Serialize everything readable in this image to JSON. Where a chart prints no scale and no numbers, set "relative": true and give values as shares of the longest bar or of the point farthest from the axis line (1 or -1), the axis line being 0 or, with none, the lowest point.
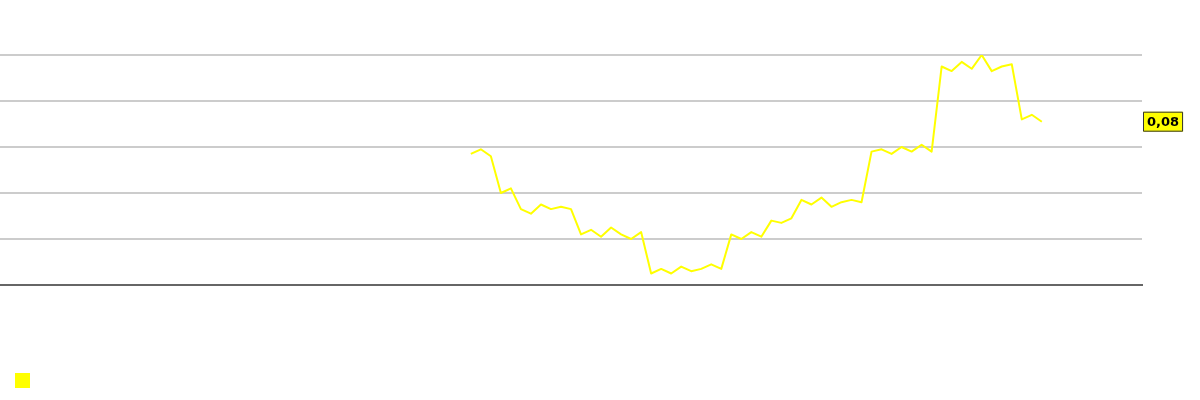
{
  "chart_data": {
    "type": "line",
    "relative": true,
    "grid": "y",
    "marker": "none",
    "categories": [
      null,
      null,
      null,
      null,
      null,
      null,
      null,
      null,
      null,
      null,
      null,
      null,
      null,
      null,
      null,
      null,
      null,
      null,
      null,
      null,
      null,
      null,
      null,
      null,
      null,
      null,
      null,
      null,
      null,
      null,
      null,
      null,
      null,
      null,
      null,
      null,
      null,
      null,
      null,
      null,
      null,
      null,
      null,
      null,
      null,
      null,
      null,
      null,
      null,
      null,
      null,
      null,
      null,
      null,
      null,
      null,
      null,
      null,
      null,
      null,
      null,
      null,
      null,
      null,
      null,
      null,
      null,
      null,
      null,
      null,
      null,
      null,
      null,
      null,
      null,
      null,
      null,
      null,
      null,
      null,
      null,
      null,
      null,
      null,
      null,
      null,
      null,
      null,
      null,
      null,
      null,
      null,
      null,
      null,
      null,
      null,
      null,
      null,
      null,
      null,
      null,
      null,
      null,
      null,
      null,
      null,
      null,
      null,
      null,
      null,
      null,
      null,
      null,
      null,
      null
    ],
    "series": [
      {
        "color": "#ffff00",
        "values": [
          null,
          null,
          null,
          null,
          null,
          null,
          null,
          null,
          null,
          null,
          null,
          null,
          null,
          null,
          null,
          null,
          null,
          null,
          null,
          null,
          null,
          null,
          null,
          null,
          null,
          null,
          null,
          null,
          null,
          null,
          null,
          null,
          null,
          null,
          null,
          null,
          null,
          null,
          null,
          null,
          null,
          null,
          null,
          null,
          null,
          null,
          null,
          0.57,
          0.59,
          0.56,
          0.4,
          0.42,
          0.33,
          0.31,
          0.35,
          0.33,
          0.34,
          0.33,
          0.22,
          0.24,
          0.21,
          0.25,
          0.22,
          0.2,
          0.23,
          0.05,
          0.07,
          0.05,
          0.08,
          0.06,
          0.07,
          0.09,
          0.07,
          0.22,
          0.2,
          0.23,
          0.21,
          0.28,
          0.27,
          0.29,
          0.37,
          0.35,
          0.38,
          0.34,
          0.36,
          0.37,
          0.36,
          0.58,
          0.59,
          0.57,
          0.6,
          0.58,
          0.61,
          0.58,
          0.95,
          0.93,
          0.97,
          0.94,
          1,
          0.93,
          0.95,
          0.96,
          0.72,
          0.74,
          0.71,
          null,
          null,
          null,
          null,
          null,
          null,
          null,
          null,
          null,
          null
        ]
      }
    ],
    "annotations": [
      "0,08"
    ]
  }
}
